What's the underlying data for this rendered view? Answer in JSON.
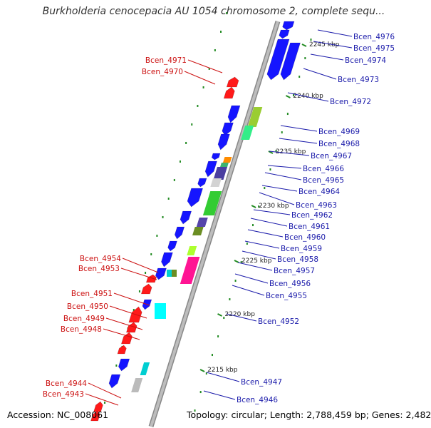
{
  "title": "Burkholderia cenocepacia AU 1054 chromosome 2, complete sequ...",
  "footer": {
    "accession": "Accession: NC_008061",
    "summary": "Topology: circular; Length: 2,788,459 bp; Genes: 2,482"
  },
  "colors": {
    "backbone": "#bdbdbd",
    "forward_gene": "#1515ff",
    "reverse_gene": "#ff1a1a",
    "forward_label": "#1a1aaa",
    "reverse_label": "#cc1111",
    "tick": "#228b22"
  },
  "ticks": [
    {
      "label": "2245 kbp",
      "pos": 2245
    },
    {
      "label": "2240 kbp",
      "pos": 2240
    },
    {
      "label": "2235 kbp",
      "pos": 2235
    },
    {
      "label": "2230 kbp",
      "pos": 2230
    },
    {
      "label": "2225 kbp",
      "pos": 2225
    },
    {
      "label": "2220 kbp",
      "pos": 2220
    },
    {
      "label": "2215 kbp",
      "pos": 2215
    }
  ],
  "forward_labels": [
    "Bcen_4976",
    "Bcen_4975",
    "Bcen_4974",
    "Bcen_4973",
    "Bcen_4972",
    "Bcen_4969",
    "Bcen_4968",
    "Bcen_4967",
    "Bcen_4966",
    "Bcen_4965",
    "Bcen_4964",
    "Bcen_4963",
    "Bcen_4962",
    "Bcen_4961",
    "Bcen_4960",
    "Bcen_4959",
    "Bcen_4958",
    "Bcen_4957",
    "Bcen_4956",
    "Bcen_4955",
    "Bcen_4952",
    "Bcen_4947",
    "Bcen_4946"
  ],
  "reverse_labels": [
    "Bcen_4971",
    "Bcen_4970",
    "Bcen_4954",
    "Bcen_4953",
    "Bcen_4951",
    "Bcen_4950",
    "Bcen_4949",
    "Bcen_4948",
    "Bcen_4944",
    "Bcen_4943"
  ]
}
